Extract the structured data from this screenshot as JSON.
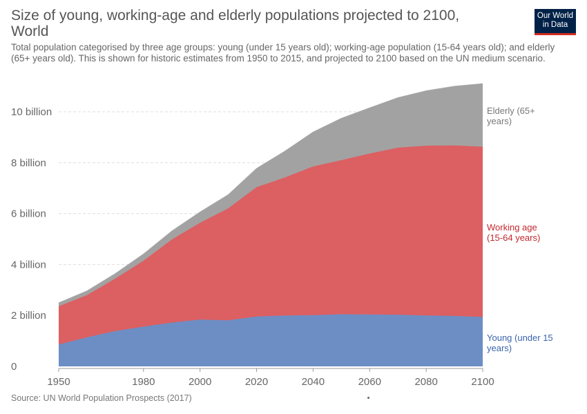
{
  "header": {
    "title": "Size of young, working-age and elderly populations projected to 2100, World",
    "subtitle": "Total population categorised by three age groups: young (under 15 years old); working-age population (15-64 years old); and elderly (65+ years old). This is shown for historic estimates from 1950 to 2015, and projected to 2100 based on the UN medium scenario."
  },
  "logo": {
    "line1": "Our World",
    "line2": "in Data"
  },
  "footer": {
    "source": "Source: UN World Population Prospects (2017)"
  },
  "chart_data": {
    "type": "area",
    "stacked": true,
    "title": "Size of young, working-age and elderly populations projected to 2100, World",
    "xlabel": "",
    "ylabel": "",
    "xlim": [
      1950,
      2100
    ],
    "ylim": [
      0,
      11000000000
    ],
    "grid": true,
    "legend": "inline-right",
    "x_ticks": [
      1950,
      1980,
      2000,
      2020,
      2040,
      2060,
      2080,
      2100
    ],
    "x_tick_labels": [
      "1950",
      "1980",
      "2000",
      "2020",
      "2040",
      "2060",
      "2080",
      "2100"
    ],
    "y_ticks": [
      0,
      2000000000,
      4000000000,
      6000000000,
      8000000000,
      10000000000
    ],
    "y_tick_labels": [
      "0",
      "2 billion",
      "4 billion",
      "6 billion",
      "8 billion",
      "10 billion"
    ],
    "x": [
      1950,
      1960,
      1970,
      1980,
      1990,
      2000,
      2010,
      2020,
      2030,
      2040,
      2050,
      2060,
      2070,
      2080,
      2090,
      2100
    ],
    "series": [
      {
        "name": "Young (under 15 years)",
        "color": "#6d8ec4",
        "values": [
          0.86,
          1.14,
          1.39,
          1.56,
          1.72,
          1.84,
          1.81,
          1.96,
          2.0,
          2.01,
          2.05,
          2.04,
          2.03,
          2.0,
          1.98,
          1.94
        ]
      },
      {
        "name": "Working age (15-64 years)",
        "color": "#dc5f62",
        "values": [
          1.5,
          1.66,
          2.06,
          2.59,
          3.26,
          3.8,
          4.4,
          5.08,
          5.42,
          5.84,
          6.05,
          6.32,
          6.56,
          6.67,
          6.7,
          6.69
        ]
      },
      {
        "name": "Elderly (65+ years)",
        "color": "#a2a2a2",
        "values": [
          0.13,
          0.16,
          0.19,
          0.26,
          0.33,
          0.42,
          0.53,
          0.73,
          1.03,
          1.35,
          1.64,
          1.79,
          1.96,
          2.15,
          2.32,
          2.47
        ]
      }
    ],
    "value_units": "billion",
    "series_labels": [
      {
        "lines": [
          "Elderly (65+",
          "years)"
        ],
        "color": "#777777"
      },
      {
        "lines": [
          "Working age",
          "(15-64 years)"
        ],
        "color": "#c1272d"
      },
      {
        "lines": [
          "Young (under 15",
          "years)"
        ],
        "color": "#3b64ad"
      }
    ]
  }
}
